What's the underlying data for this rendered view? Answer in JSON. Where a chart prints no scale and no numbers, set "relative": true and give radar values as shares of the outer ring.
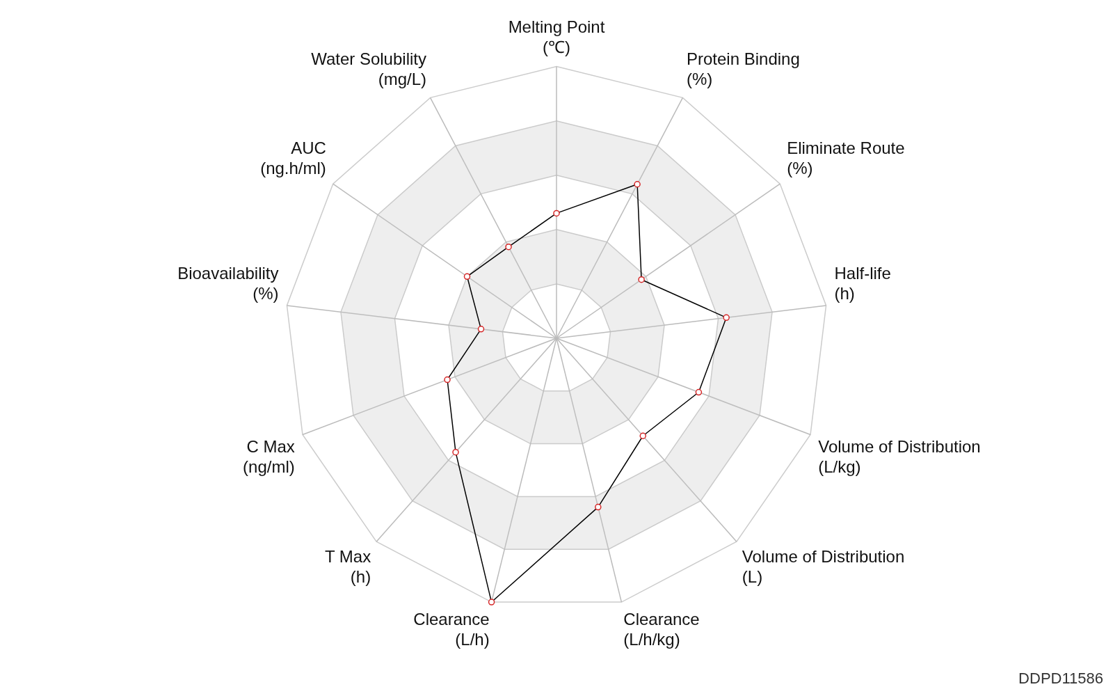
{
  "chart_data": {
    "type": "radar",
    "relative": true,
    "categories": [
      "Melting Point\n(℃)",
      "Protein Binding\n(%)",
      "Eliminate Route\n(%)",
      "Half-life\n(h)",
      "Volume of Distribution\n(L/kg)",
      "Volume of Distribution\n(L)",
      "Clearance\n(L/h/kg)",
      "Clearance\n(L/h)",
      "T Max\n(h)",
      "C Max\n(ng/ml)",
      "Bioavailability\n(%)",
      "AUC\n(ng.h/ml)",
      "Water Solubility\n(mg/L)"
    ],
    "series": [
      {
        "color": "#000000",
        "values": [
          0.46,
          0.64,
          0.38,
          0.63,
          0.56,
          0.48,
          0.64,
          1.0,
          0.56,
          0.43,
          0.28,
          0.4,
          0.38
        ]
      }
    ],
    "marker": "circle",
    "grid": true,
    "legend": false,
    "annotations": [
      "DDPD11586"
    ]
  }
}
